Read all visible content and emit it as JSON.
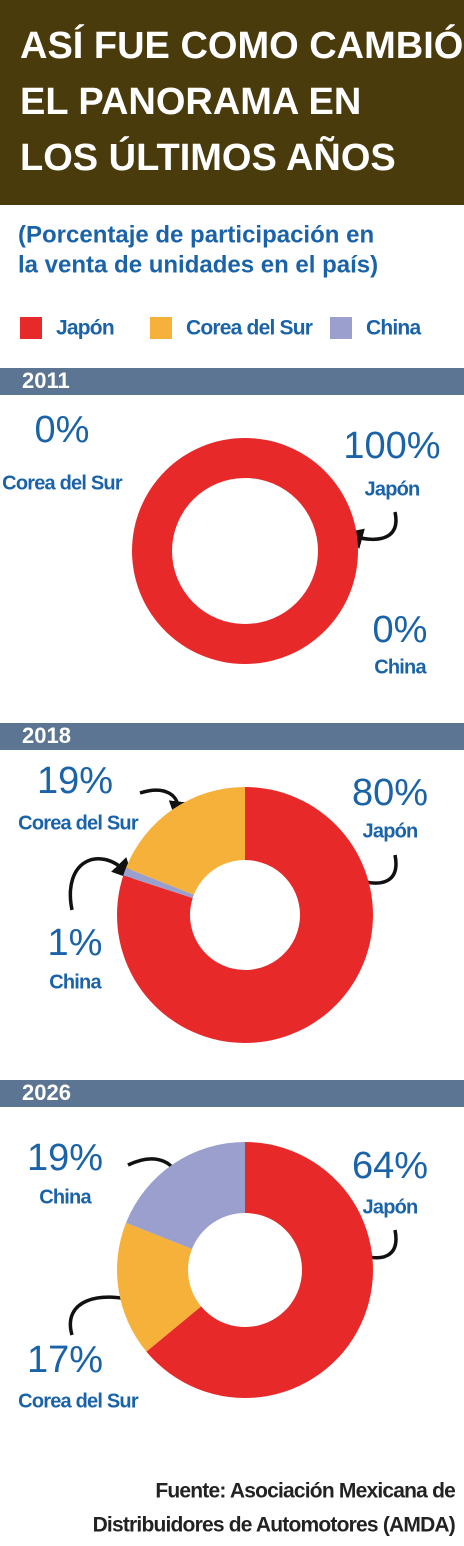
{
  "title": [
    "ASÍ FUE COMO CAMBIÓ",
    "EL PANORAMA EN",
    "LOS ÚLTIMOS AÑOS"
  ],
  "subtitle": [
    "(Porcentaje de participación en",
    "la venta de unidades en el país)"
  ],
  "legend": [
    {
      "name": "Japón",
      "color": "#e8292a"
    },
    {
      "name": "Corea del Sur",
      "color": "#f6b13a"
    },
    {
      "name": "China",
      "color": "#9a9fce"
    }
  ],
  "chart_data": [
    {
      "type": "pie",
      "title": "2011",
      "categories": [
        "Japón",
        "Corea del Sur",
        "China"
      ],
      "values": [
        100,
        0,
        0
      ],
      "value_labels": [
        "100%",
        "0%",
        "0%"
      ],
      "colors": [
        "#e8292a",
        "#f6b13a",
        "#9a9fce"
      ]
    },
    {
      "type": "pie",
      "title": "2018",
      "categories": [
        "Japón",
        "China",
        "Corea del Sur"
      ],
      "values": [
        80,
        1,
        19
      ],
      "value_labels": [
        "80%",
        "1%",
        "19%"
      ],
      "colors": [
        "#e8292a",
        "#9a9fce",
        "#f6b13a"
      ]
    },
    {
      "type": "pie",
      "title": "2026",
      "categories": [
        "Japón",
        "Corea del Sur",
        "China"
      ],
      "values": [
        64,
        17,
        19
      ],
      "value_labels": [
        "64%",
        "17%",
        "19%"
      ],
      "colors": [
        "#e8292a",
        "#f6b13a",
        "#9a9fce"
      ]
    }
  ],
  "source": [
    "Fuente: Asociación Mexicana de",
    "Distribuidores de Automotores (AMDA)"
  ]
}
